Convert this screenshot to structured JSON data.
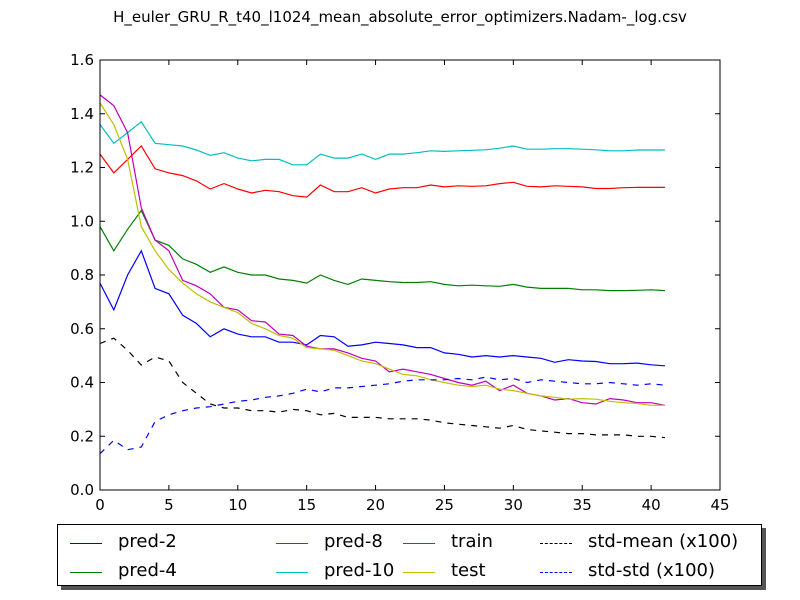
{
  "chart_data": {
    "type": "line",
    "title": "H_euler_GRU_R_t40_l1024_mean_absolute_error_optimizers.Nadam-_log.csv",
    "xlabel": "",
    "ylabel": "",
    "xlim": [
      0,
      45
    ],
    "ylim": [
      0.0,
      1.6
    ],
    "xticks": [
      "0",
      "5",
      "10",
      "15",
      "20",
      "25",
      "30",
      "35",
      "40",
      "45"
    ],
    "yticks": [
      "0.0",
      "0.2",
      "0.4",
      "0.6",
      "0.8",
      "1.0",
      "1.2",
      "1.4",
      "1.6"
    ],
    "grid": false,
    "legend_position": "below plot",
    "x": [
      0,
      1,
      2,
      3,
      4,
      5,
      6,
      7,
      8,
      9,
      10,
      11,
      12,
      13,
      14,
      15,
      16,
      17,
      18,
      19,
      20,
      21,
      22,
      23,
      24,
      25,
      26,
      27,
      28,
      29,
      30,
      31,
      32,
      33,
      34,
      35,
      36,
      37,
      38,
      39,
      40,
      41
    ],
    "series": [
      {
        "name": "pred-2",
        "color": "#0000ff",
        "dash": "solid",
        "values": [
          0.77,
          0.67,
          0.8,
          0.89,
          0.75,
          0.73,
          0.65,
          0.62,
          0.57,
          0.6,
          0.58,
          0.57,
          0.57,
          0.55,
          0.55,
          0.54,
          0.575,
          0.57,
          0.535,
          0.54,
          0.55,
          0.545,
          0.54,
          0.53,
          0.53,
          0.51,
          0.505,
          0.495,
          0.5,
          0.495,
          0.5,
          0.495,
          0.49,
          0.475,
          0.485,
          0.48,
          0.478,
          0.47,
          0.47,
          0.472,
          0.466,
          0.462
        ]
      },
      {
        "name": "pred-4",
        "color": "#008000",
        "dash": "solid",
        "values": [
          0.98,
          0.89,
          0.97,
          1.04,
          0.93,
          0.91,
          0.86,
          0.84,
          0.81,
          0.83,
          0.81,
          0.8,
          0.8,
          0.785,
          0.78,
          0.77,
          0.8,
          0.78,
          0.765,
          0.785,
          0.78,
          0.775,
          0.772,
          0.772,
          0.775,
          0.765,
          0.76,
          0.762,
          0.76,
          0.758,
          0.765,
          0.755,
          0.75,
          0.75,
          0.75,
          0.745,
          0.745,
          0.742,
          0.742,
          0.743,
          0.745,
          0.742
        ]
      },
      {
        "name": "pred-8",
        "color": "#ff0000",
        "dash": "solid",
        "values": [
          1.25,
          1.18,
          1.23,
          1.28,
          1.195,
          1.18,
          1.17,
          1.15,
          1.12,
          1.14,
          1.12,
          1.105,
          1.115,
          1.11,
          1.095,
          1.09,
          1.135,
          1.11,
          1.11,
          1.125,
          1.105,
          1.12,
          1.125,
          1.125,
          1.135,
          1.128,
          1.132,
          1.13,
          1.132,
          1.14,
          1.145,
          1.13,
          1.128,
          1.132,
          1.13,
          1.128,
          1.122,
          1.122,
          1.125,
          1.126,
          1.126,
          1.126
        ]
      },
      {
        "name": "pred-10",
        "color": "#00bfbf",
        "dash": "solid",
        "values": [
          1.36,
          1.29,
          1.33,
          1.37,
          1.29,
          1.285,
          1.28,
          1.265,
          1.245,
          1.255,
          1.235,
          1.225,
          1.23,
          1.23,
          1.21,
          1.21,
          1.25,
          1.235,
          1.235,
          1.25,
          1.23,
          1.25,
          1.25,
          1.255,
          1.262,
          1.26,
          1.262,
          1.264,
          1.266,
          1.272,
          1.28,
          1.268,
          1.268,
          1.27,
          1.27,
          1.268,
          1.266,
          1.262,
          1.262,
          1.265,
          1.265,
          1.265
        ]
      },
      {
        "name": "train",
        "color": "#bf00bf",
        "dash": "solid",
        "values": [
          1.47,
          1.43,
          1.33,
          1.05,
          0.93,
          0.89,
          0.78,
          0.76,
          0.73,
          0.68,
          0.67,
          0.63,
          0.625,
          0.58,
          0.575,
          0.535,
          0.525,
          0.525,
          0.51,
          0.49,
          0.48,
          0.44,
          0.45,
          0.44,
          0.43,
          0.415,
          0.4,
          0.39,
          0.405,
          0.37,
          0.39,
          0.36,
          0.35,
          0.335,
          0.34,
          0.325,
          0.32,
          0.34,
          0.335,
          0.325,
          0.325,
          0.315
        ]
      },
      {
        "name": "test",
        "color": "#bfbf00",
        "dash": "solid",
        "values": [
          1.44,
          1.36,
          1.23,
          0.98,
          0.89,
          0.82,
          0.77,
          0.73,
          0.7,
          0.68,
          0.66,
          0.62,
          0.6,
          0.575,
          0.565,
          0.53,
          0.525,
          0.52,
          0.5,
          0.48,
          0.47,
          0.45,
          0.43,
          0.425,
          0.41,
          0.4,
          0.39,
          0.385,
          0.39,
          0.375,
          0.37,
          0.36,
          0.35,
          0.345,
          0.338,
          0.34,
          0.338,
          0.33,
          0.325,
          0.322,
          0.315,
          0.315
        ]
      },
      {
        "name": "std-mean (x100)",
        "color": "#000000",
        "dash": "dashed",
        "values": [
          0.545,
          0.565,
          0.52,
          0.465,
          0.495,
          0.48,
          0.4,
          0.36,
          0.32,
          0.305,
          0.305,
          0.295,
          0.295,
          0.29,
          0.3,
          0.295,
          0.28,
          0.285,
          0.27,
          0.27,
          0.27,
          0.265,
          0.265,
          0.265,
          0.26,
          0.25,
          0.245,
          0.24,
          0.235,
          0.23,
          0.24,
          0.225,
          0.22,
          0.215,
          0.21,
          0.21,
          0.205,
          0.205,
          0.205,
          0.2,
          0.2,
          0.195
        ]
      },
      {
        "name": "std-std (x100)",
        "color": "#0000ff",
        "dash": "dashed",
        "values": [
          0.135,
          0.185,
          0.15,
          0.16,
          0.255,
          0.28,
          0.295,
          0.305,
          0.31,
          0.32,
          0.33,
          0.335,
          0.345,
          0.35,
          0.36,
          0.375,
          0.365,
          0.38,
          0.38,
          0.385,
          0.39,
          0.395,
          0.405,
          0.41,
          0.41,
          0.41,
          0.415,
          0.41,
          0.42,
          0.41,
          0.415,
          0.4,
          0.41,
          0.405,
          0.4,
          0.395,
          0.395,
          0.4,
          0.395,
          0.39,
          0.395,
          0.39
        ]
      }
    ]
  },
  "legend": [
    {
      "label": "pred-2",
      "color": "#0000ff",
      "dash": "solid"
    },
    {
      "label": "pred-4",
      "color": "#008000",
      "dash": "solid"
    },
    {
      "label": "pred-8",
      "color": "#ff0000",
      "dash": "solid"
    },
    {
      "label": "pred-10",
      "color": "#00bfbf",
      "dash": "solid"
    },
    {
      "label": "train",
      "color": "#bf00bf",
      "dash": "solid"
    },
    {
      "label": "test",
      "color": "#bfbf00",
      "dash": "solid"
    },
    {
      "label": "std-mean (x100)",
      "color": "#000000",
      "dash": "dashed"
    },
    {
      "label": "std-std (x100)",
      "color": "#0000ff",
      "dash": "dashed"
    }
  ]
}
